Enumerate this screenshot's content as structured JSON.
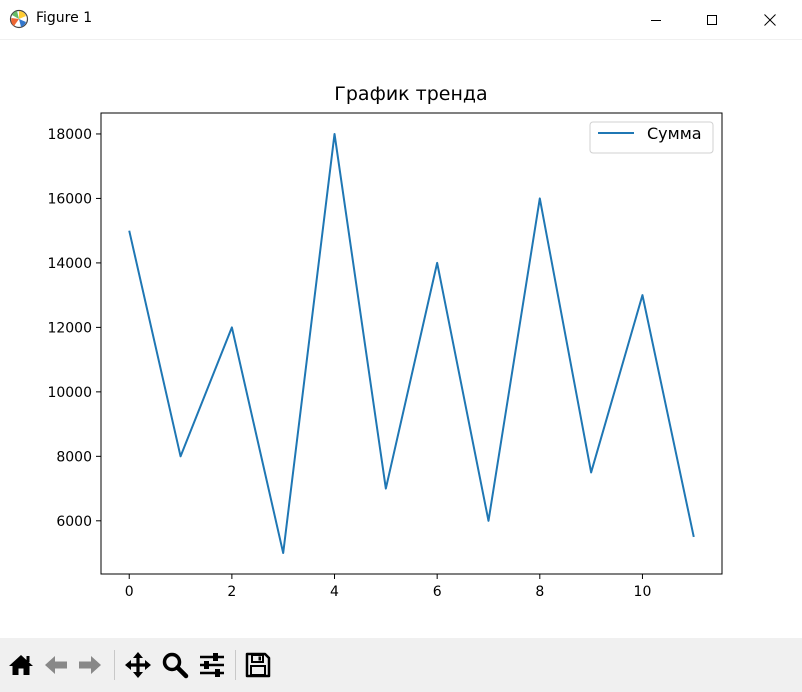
{
  "window": {
    "title": "Figure 1"
  },
  "titlebar_buttons": [
    "minimize-icon",
    "maximize-icon",
    "close-icon"
  ],
  "toolbar": {
    "buttons": [
      "home-icon",
      "back-arrow-icon",
      "forward-arrow-icon",
      "pan-icon",
      "zoom-icon",
      "configure-subplots-icon",
      "save-icon"
    ]
  },
  "colors": {
    "line": "#1f77b4",
    "toolbar_bg": "#f0f0f0"
  },
  "chart_data": {
    "type": "line",
    "title": "График тренда",
    "xlabel": "",
    "ylabel": "",
    "x": [
      0,
      1,
      2,
      3,
      4,
      5,
      6,
      7,
      8,
      9,
      10,
      11
    ],
    "series": [
      {
        "name": "Сумма",
        "values": [
          15000,
          8000,
          12000,
          5000,
          18000,
          7000,
          14000,
          6000,
          16000,
          7500,
          13000,
          5500
        ]
      }
    ],
    "xticks": [
      0,
      2,
      4,
      6,
      8,
      10
    ],
    "yticks": [
      6000,
      8000,
      10000,
      12000,
      14000,
      16000,
      18000
    ],
    "xlim": [
      -0.55,
      11.55
    ],
    "ylim": [
      4350,
      18650
    ],
    "grid": false,
    "legend_position": "upper right"
  }
}
